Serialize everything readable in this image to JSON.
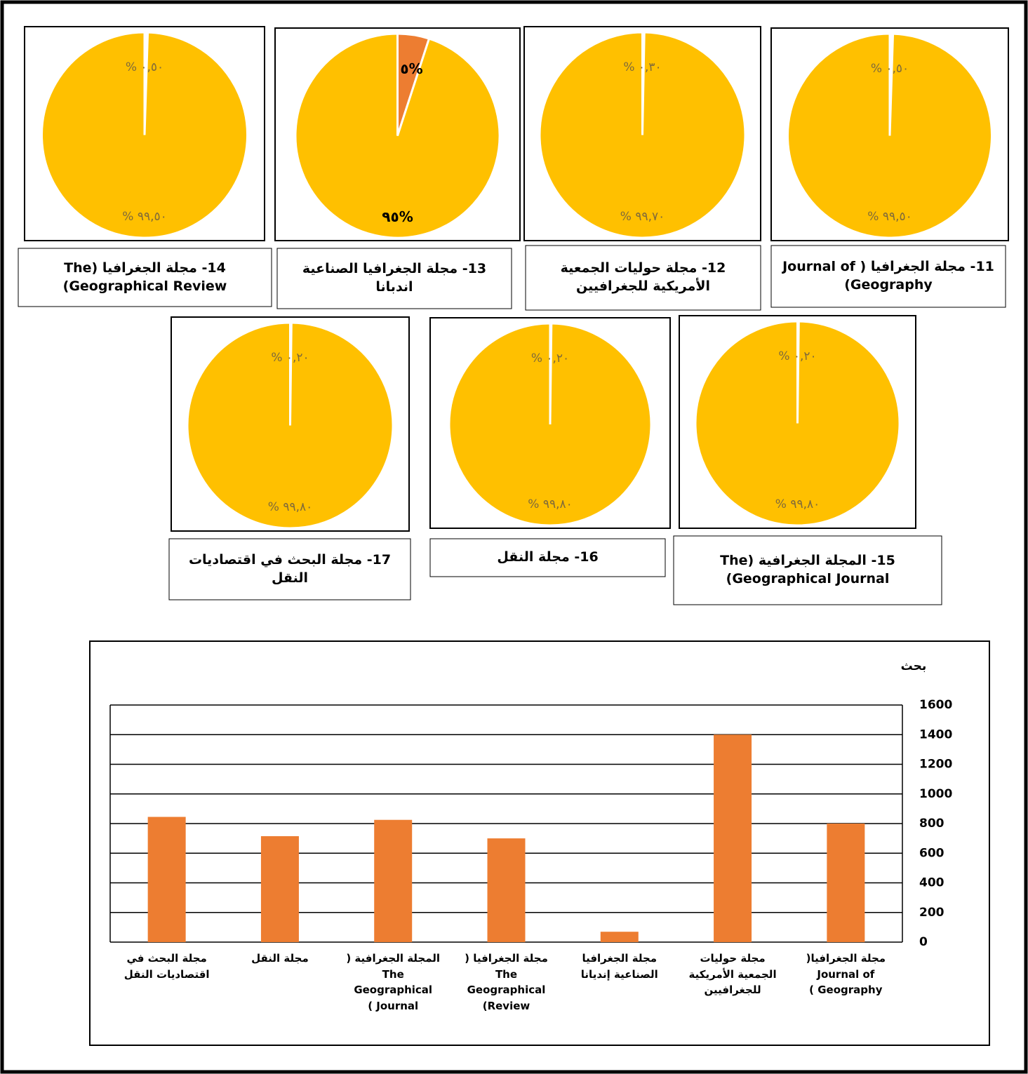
{
  "chart_data": [
    {
      "type": "pie",
      "caption": "11- مجلة الجغرافيا ( Journal of Geography)",
      "values": [
        0.5,
        99.5
      ],
      "value_labels": [
        "٠,٥٠ %",
        "٩٩,٥٠ %"
      ],
      "colors": [
        "#FFFFFF",
        "#FFC000"
      ]
    },
    {
      "type": "pie",
      "caption": "12- مجلة حوليات الجمعية الأمريكية للجغرافيين",
      "values": [
        0.3,
        99.7
      ],
      "value_labels": [
        "٠,٣٠ %",
        "٩٩,٧٠ %"
      ],
      "colors": [
        "#FFFFFF",
        "#FFC000"
      ]
    },
    {
      "type": "pie",
      "caption": "13- مجلة الجغرافيا الصناعية اندبانا",
      "values": [
        5,
        95
      ],
      "value_labels": [
        "%٥",
        "%٩٥"
      ],
      "colors": [
        "#ED7D31",
        "#FFC000"
      ]
    },
    {
      "type": "pie",
      "caption": "14- مجلة الجغرافيا (The Geographical Review)",
      "values": [
        0.5,
        99.5
      ],
      "value_labels": [
        "٠,٥٠ %",
        "٩٩,٥٠ %"
      ],
      "colors": [
        "#FFFFFF",
        "#FFC000"
      ]
    },
    {
      "type": "pie",
      "caption": "15- المجلة الجغرافية (The Geographical Journal)",
      "values": [
        0.2,
        99.8
      ],
      "value_labels": [
        "٠,٢٠ %",
        "٩٩,٨٠ %"
      ],
      "colors": [
        "#FFFFFF",
        "#FFC000"
      ]
    },
    {
      "type": "pie",
      "caption": "16- مجلة النقل",
      "values": [
        0.2,
        99.8
      ],
      "value_labels": [
        "٠,٢٠ %",
        "٩٩,٨٠ %"
      ],
      "colors": [
        "#FFFFFF",
        "#FFC000"
      ]
    },
    {
      "type": "pie",
      "caption": "17- مجلة البحث في اقتصاديات النقل",
      "values": [
        0.2,
        99.8
      ],
      "value_labels": [
        "٠,٢٠ %",
        "٩٩,٨٠ %"
      ],
      "colors": [
        "#FFFFFF",
        "#FFC000"
      ]
    },
    {
      "type": "bar",
      "y_label": "بحث",
      "categories": [
        "مجلة الجغرافيا( Journal of Geography )",
        "مجلة حوليات الجمعية الأمريكية للجغرافيين",
        "مجلة الجغرافيا الصناعية إنديانا",
        "مجلة الجغرافيا ( The Geographical Review)",
        "المجلة الجغرافية ( The Geographical Journal )",
        "مجلة النقل",
        "مجلة البحث في اقتصاديات النقل"
      ],
      "values": [
        800,
        1400,
        70,
        700,
        825,
        715,
        845
      ],
      "color": "#ED7D31",
      "ylim": [
        0,
        1600
      ],
      "yticks": [
        0,
        200,
        400,
        600,
        800,
        1000,
        1200,
        1400,
        1600
      ],
      "grid": true
    }
  ]
}
